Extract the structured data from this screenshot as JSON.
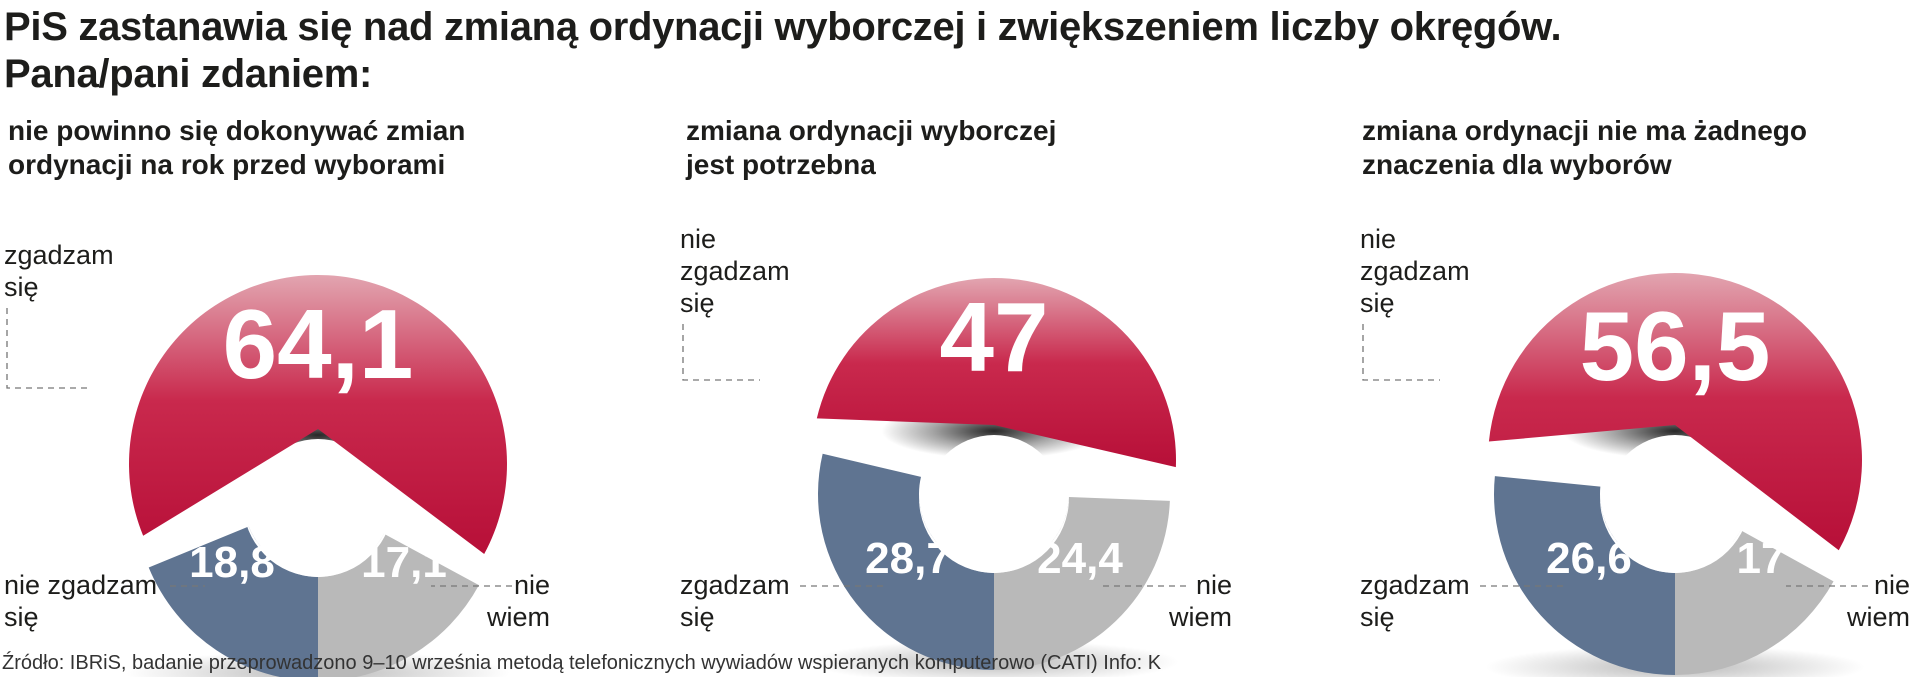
{
  "headline": {
    "line1": "PiS zastanawia się nad zmianą ordynacji wyborczej i zwiększeniem liczby okręgów.",
    "line2": "Pana/pani zdaniem:"
  },
  "source": "Źródło: IBRiS, badanie przeprowadzono 9–10 września metodą telefonicznych wywiadów wspieranych komputerowo (CATI)   Info: K",
  "colors": {
    "highlight": "#c0143c",
    "disagree": "#5f7491",
    "dont_know": "#b9b9b9",
    "background": "#ffffff"
  },
  "chart_data": [
    {
      "type": "pie",
      "title_lines": [
        "nie powinno się dokonywać zmian",
        "ordynacji na rok przed wyborami"
      ],
      "highlight": {
        "label_lines": [
          "zgadzam",
          "się"
        ],
        "value": 64.1,
        "display": "64,1"
      },
      "left": {
        "label_lines": [
          "nie zgadzam",
          "się"
        ],
        "value": 18.8,
        "display": "18,8"
      },
      "right": {
        "label_lines": [
          "nie",
          "wiem"
        ],
        "value": 17.1,
        "display": "17,1"
      }
    },
    {
      "type": "pie",
      "title_lines": [
        "zmiana ordynacji wyborczej",
        "jest potrzebna"
      ],
      "highlight": {
        "label_lines": [
          "nie",
          "zgadzam",
          "się"
        ],
        "value": 47,
        "display": "47"
      },
      "left": {
        "label_lines": [
          "zgadzam",
          "się"
        ],
        "value": 28.7,
        "display": "28,7"
      },
      "right": {
        "label_lines": [
          "nie",
          "wiem"
        ],
        "value": 24.4,
        "display": "24,4"
      }
    },
    {
      "type": "pie",
      "title_lines": [
        "zmiana ordynacji nie ma żadnego",
        "znaczenia dla wyborów"
      ],
      "highlight": {
        "label_lines": [
          "nie",
          "zgadzam",
          "się"
        ],
        "value": 56.5,
        "display": "56,5"
      },
      "left": {
        "label_lines": [
          "zgadzam",
          "się"
        ],
        "value": 26.6,
        "display": "26,6"
      },
      "right": {
        "label_lines": [
          "nie",
          "wiem"
        ],
        "value": 17,
        "display": "17"
      }
    }
  ]
}
